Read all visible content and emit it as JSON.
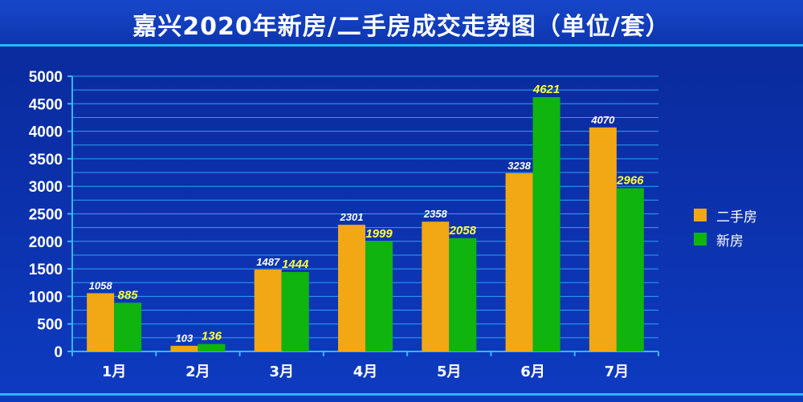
{
  "chart_data": {
    "type": "bar",
    "title": "嘉兴2020年新房/二手房成交走势图（单位/套）",
    "categories": [
      "1月",
      "2月",
      "3月",
      "4月",
      "5月",
      "6月",
      "7月"
    ],
    "series": [
      {
        "name": "二手房",
        "values": [
          1058,
          103,
          1487,
          2301,
          2358,
          3238,
          4070
        ],
        "color": "#f2a714"
      },
      {
        "name": "新房",
        "values": [
          885,
          136,
          1444,
          1999,
          2058,
          4621,
          2966
        ],
        "color": "#0fb40f"
      }
    ],
    "ylim": [
      0,
      5000
    ],
    "yticks": [
      0,
      500,
      1000,
      1500,
      2000,
      2500,
      3000,
      3500,
      4000,
      4500,
      5000
    ],
    "grid": true,
    "legend": "right",
    "xlabel": "",
    "ylabel": ""
  }
}
